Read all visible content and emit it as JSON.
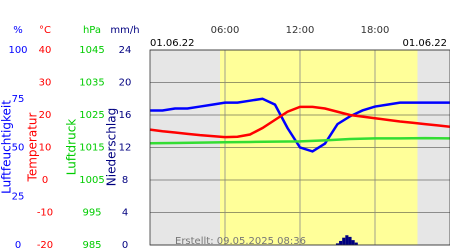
{
  "chart_data": {
    "type": "line",
    "date_left": "01.06.22",
    "date_right": "01.06.22",
    "footer": "Erstellt: 09.05.2025 08:36",
    "xlim": [
      0,
      24
    ],
    "xticks": [
      {
        "value": 6,
        "label": "06:00"
      },
      {
        "value": 12,
        "label": "12:00"
      },
      {
        "value": 18,
        "label": "18:00"
      }
    ],
    "daylight": [
      5.6,
      21.4
    ],
    "grid": true,
    "grid_axis": 1,
    "axes": [
      {
        "unit": "%",
        "title": "Luftfeuchtigkeit",
        "color": "#0000ff",
        "ylim": [
          0,
          100
        ],
        "yticks": [
          0,
          25,
          50,
          75,
          100
        ]
      },
      {
        "unit": "°C",
        "title": "Temperatur",
        "color": "#ff0000",
        "ylim": [
          -20,
          40
        ],
        "yticks": [
          -20,
          -10,
          0,
          10,
          20,
          30,
          40
        ]
      },
      {
        "unit": "hPa",
        "title": "Luftdruck",
        "color": "#00cc00",
        "ylim": [
          985,
          1045
        ],
        "yticks": [
          985,
          995,
          1005,
          1015,
          1025,
          1035,
          1045
        ]
      },
      {
        "unit": "mm/h",
        "title": "Niederschlag",
        "color": "#000080",
        "ylim": [
          0,
          24
        ],
        "yticks": [
          0,
          4,
          8,
          12,
          16,
          20,
          24
        ]
      }
    ],
    "series": [
      {
        "name": "Luftfeuchtigkeit",
        "type": "line",
        "axis": 0,
        "color": "#0000ff",
        "x": [
          0,
          1,
          2,
          3,
          4,
          5,
          6,
          7,
          8,
          9,
          10,
          11,
          12,
          13,
          14,
          15,
          16,
          17,
          18,
          19,
          20,
          21,
          22,
          23,
          24
        ],
        "values": [
          69,
          69,
          70,
          70,
          71,
          72,
          73,
          73,
          74,
          75,
          72,
          60,
          50,
          48,
          52,
          62,
          66,
          69,
          71,
          72,
          73,
          73,
          73,
          73,
          73
        ]
      },
      {
        "name": "Temperatur",
        "type": "line",
        "axis": 1,
        "color": "#ff0000",
        "x": [
          0,
          1,
          2,
          3,
          4,
          5,
          6,
          7,
          8,
          9,
          10,
          11,
          12,
          13,
          14,
          15,
          16,
          17,
          18,
          19,
          20,
          21,
          22,
          23,
          24
        ],
        "values": [
          15.5,
          15,
          14.6,
          14.2,
          13.8,
          13.5,
          13.2,
          13.3,
          14,
          16,
          18.5,
          21,
          22.5,
          22.5,
          22,
          21,
          20,
          19.5,
          19,
          18.5,
          18,
          17.6,
          17.2,
          16.8,
          16.4
        ]
      },
      {
        "name": "Luftdruck",
        "type": "line",
        "axis": 2,
        "color": "#33dd33",
        "x": [
          0,
          2,
          4,
          6,
          8,
          10,
          12,
          14,
          16,
          18,
          20,
          22,
          24
        ],
        "values": [
          1016.3,
          1016.4,
          1016.5,
          1016.6,
          1016.7,
          1016.8,
          1016.9,
          1017.2,
          1017.6,
          1017.8,
          1017.8,
          1017.9,
          1017.8
        ]
      },
      {
        "name": "Niederschlag",
        "type": "bar",
        "axis": 3,
        "color": "#000080",
        "width": 0.25,
        "x": [
          15,
          15.25,
          15.5,
          15.75,
          16,
          16.25,
          16.5
        ],
        "values": [
          0.2,
          0.5,
          0.9,
          1.2,
          1.0,
          0.6,
          0.3
        ]
      }
    ]
  }
}
